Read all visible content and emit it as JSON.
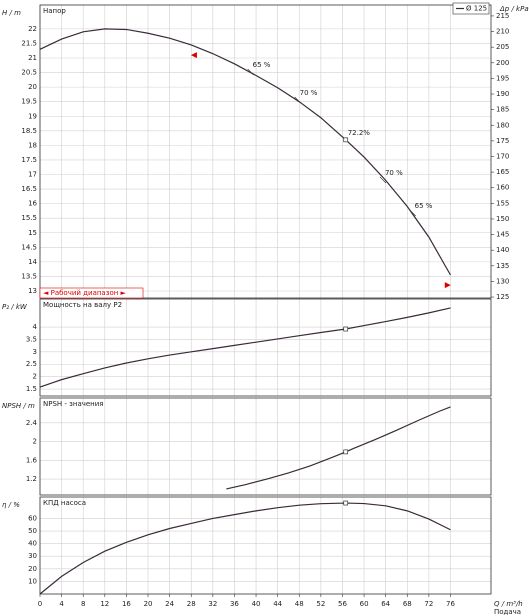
{
  "chart_data": [
    {
      "type": "line",
      "title": "Напор",
      "ylabel": "H / m",
      "y2label": "Δp / kPa",
      "x": [
        0,
        4,
        8,
        12,
        16,
        20,
        24,
        28,
        32,
        36,
        40,
        44,
        48,
        52,
        56.6,
        60,
        64,
        68,
        72,
        76
      ],
      "series": [
        {
          "name": "Ø 125",
          "color": "#3a2a3a",
          "values": [
            21.3,
            21.65,
            21.9,
            22.0,
            21.98,
            21.85,
            21.68,
            21.45,
            21.15,
            20.8,
            20.4,
            19.98,
            19.5,
            18.95,
            18.19,
            17.6,
            16.8,
            15.9,
            14.85,
            13.55
          ]
        }
      ],
      "xlim": [
        0,
        83.5
      ],
      "ylim": [
        12.76,
        22.82
      ],
      "yticks": [
        13,
        13.5,
        14,
        14.5,
        15,
        15.5,
        16,
        16.5,
        17,
        17.5,
        18,
        18.5,
        19,
        19.5,
        20,
        20.5,
        21,
        21.5,
        22
      ],
      "y2lim": [
        124.7,
        218.5
      ],
      "y2ticks": [
        125,
        130,
        135,
        140,
        145,
        150,
        155,
        160,
        165,
        170,
        175,
        180,
        185,
        190,
        195,
        200,
        205,
        210,
        215
      ],
      "operating_point": {
        "x": 56.6,
        "y": 18.19
      },
      "annotations": [
        {
          "x": 39,
          "y": 20.52,
          "label": "65 %"
        },
        {
          "x": 47.7,
          "y": 19.56,
          "label": "70 %"
        },
        {
          "x": 56.6,
          "y": 18.19,
          "label": "72.2%"
        },
        {
          "x": 63.5,
          "y": 16.81,
          "label": "70 %"
        },
        {
          "x": 69,
          "y": 15.68,
          "label": "65 %"
        }
      ],
      "range": {
        "label": "◄ Рабочий диапазон ►",
        "q": [
          28.5,
          75.5
        ],
        "h": [
          21.1,
          13.2
        ]
      }
    },
    {
      "type": "line",
      "title": "Мощность на валу P2",
      "ylabel": "P₂ / kW",
      "x": [
        0,
        4,
        8,
        12,
        16,
        20,
        24,
        28,
        32,
        36,
        40,
        44,
        48,
        52,
        56.6,
        60,
        64,
        68,
        72,
        76
      ],
      "series": [
        {
          "color": "#3a2a3a",
          "values": [
            1.58,
            1.88,
            2.12,
            2.35,
            2.55,
            2.72,
            2.87,
            3.0,
            3.13,
            3.26,
            3.39,
            3.52,
            3.65,
            3.78,
            3.92,
            4.06,
            4.22,
            4.39,
            4.57,
            4.77
          ]
        }
      ],
      "xlim": [
        0,
        83.5
      ],
      "ylim": [
        1.22,
        5.13
      ],
      "yticks": [
        1.5,
        2,
        2.5,
        3,
        3.5,
        4
      ],
      "operating_point": {
        "x": 56.6,
        "y": 3.92
      }
    },
    {
      "type": "line",
      "title": "NPSH - значения",
      "ylabel": "NPSH / m",
      "x": [
        34.5,
        38,
        42,
        46,
        50,
        54,
        56.6,
        58,
        62,
        66,
        70,
        74,
        76
      ],
      "series": [
        {
          "color": "#3a2a3a",
          "values": [
            0.99,
            1.08,
            1.2,
            1.33,
            1.48,
            1.66,
            1.78,
            1.85,
            2.04,
            2.24,
            2.45,
            2.65,
            2.74
          ]
        }
      ],
      "xlim": [
        0,
        83.5
      ],
      "ylim": [
        0.86,
        2.93
      ],
      "yticks": [
        1.2,
        1.6,
        2,
        2.4
      ],
      "operating_point": {
        "x": 56.6,
        "y": 1.78
      }
    },
    {
      "type": "line",
      "title": "КПД насоса",
      "ylabel": "η / %",
      "xlabel": "Q / m³/h",
      "x_caption": "Подача",
      "x": [
        0,
        4,
        8,
        12,
        16,
        20,
        24,
        28,
        32,
        36,
        40,
        44,
        48,
        52,
        56.6,
        60,
        64,
        68,
        72,
        76
      ],
      "series": [
        {
          "color": "#3a2a3a",
          "values": [
            0,
            14,
            25,
            34,
            41,
            47,
            52,
            56,
            60,
            63,
            66,
            68.5,
            70.5,
            71.7,
            72.2,
            71.8,
            70,
            66,
            59.5,
            51
          ]
        }
      ],
      "xlim": [
        0,
        83.5
      ],
      "ylim": [
        0,
        77
      ],
      "yticks": [
        10,
        20,
        30,
        40,
        50,
        60
      ],
      "xticks": [
        0,
        4,
        8,
        12,
        16,
        20,
        24,
        28,
        32,
        36,
        40,
        44,
        48,
        52,
        56,
        60,
        64,
        68,
        72,
        76
      ],
      "operating_point": {
        "x": 56.6,
        "y": 72.2
      }
    }
  ]
}
